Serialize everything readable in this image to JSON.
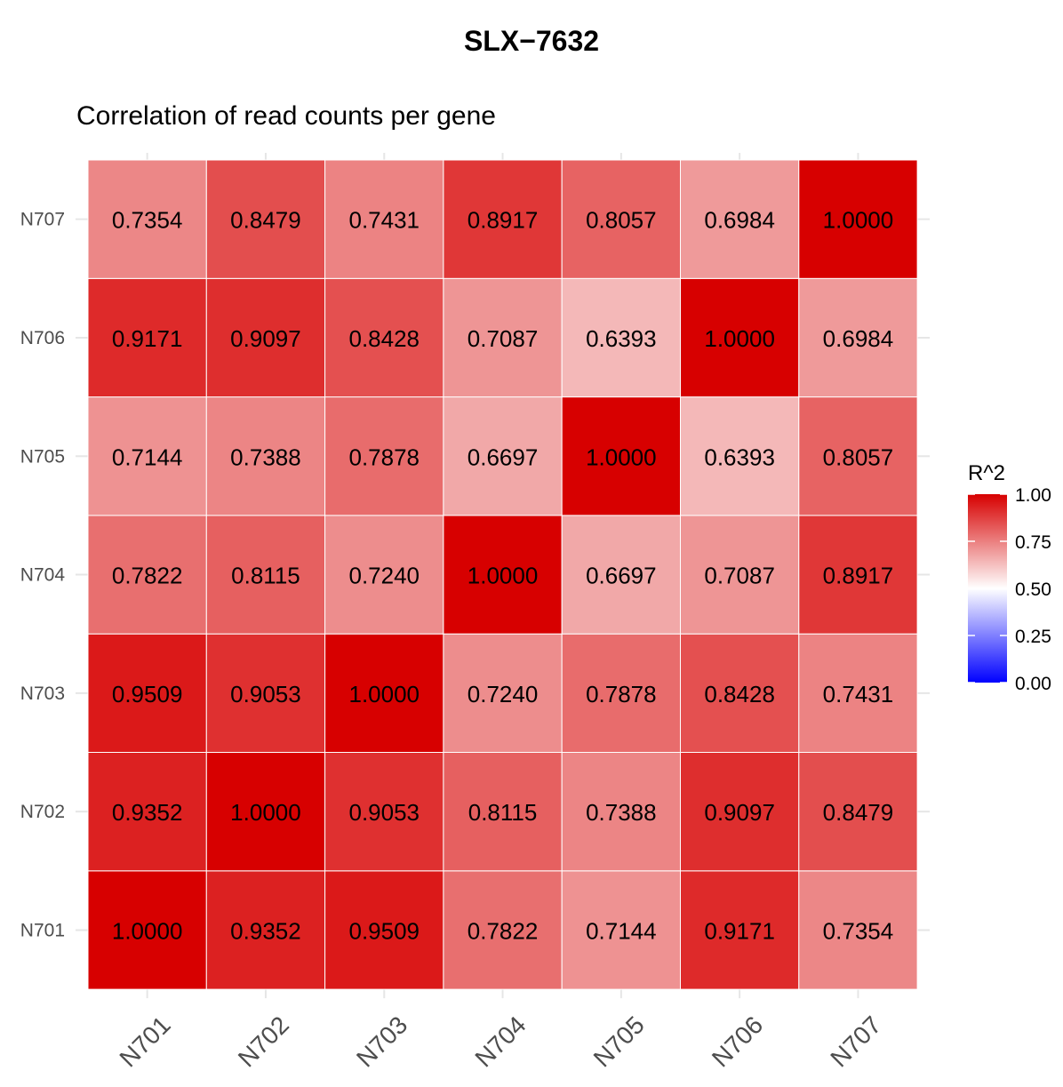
{
  "chart_data": {
    "type": "heatmap",
    "title": "SLX−7632",
    "subtitle": "Correlation of read counts per gene",
    "x_categories": [
      "N701",
      "N702",
      "N703",
      "N704",
      "N705",
      "N706",
      "N707"
    ],
    "y_categories": [
      "N701",
      "N702",
      "N703",
      "N704",
      "N705",
      "N706",
      "N707"
    ],
    "values": [
      [
        1.0,
        0.9352,
        0.9509,
        0.7822,
        0.7144,
        0.9171,
        0.7354
      ],
      [
        0.9352,
        1.0,
        0.9053,
        0.8115,
        0.7388,
        0.9097,
        0.8479
      ],
      [
        0.9509,
        0.9053,
        1.0,
        0.724,
        0.7878,
        0.8428,
        0.7431
      ],
      [
        0.7822,
        0.8115,
        0.724,
        1.0,
        0.6697,
        0.7087,
        0.8917
      ],
      [
        0.7144,
        0.7388,
        0.7878,
        0.6697,
        1.0,
        0.6393,
        0.8057
      ],
      [
        0.9171,
        0.9097,
        0.8428,
        0.7087,
        0.6393,
        1.0,
        0.6984
      ],
      [
        0.7354,
        0.8479,
        0.7431,
        0.8917,
        0.8057,
        0.6984,
        1.0
      ]
    ],
    "cell_labels": [
      [
        "1.0000",
        "0.9352",
        "0.9509",
        "0.7822",
        "0.7144",
        "0.9171",
        "0.7354"
      ],
      [
        "0.9352",
        "1.0000",
        "0.9053",
        "0.8115",
        "0.7388",
        "0.9097",
        "0.8479"
      ],
      [
        "0.9509",
        "0.9053",
        "1.0000",
        "0.7240",
        "0.7878",
        "0.8428",
        "0.7431"
      ],
      [
        "0.7822",
        "0.8115",
        "0.7240",
        "1.0000",
        "0.6697",
        "0.7087",
        "0.8917"
      ],
      [
        "0.7144",
        "0.7388",
        "0.7878",
        "0.6697",
        "1.0000",
        "0.6393",
        "0.8057"
      ],
      [
        "0.9171",
        "0.9097",
        "0.8428",
        "0.7087",
        "0.6393",
        "1.0000",
        "0.6984"
      ],
      [
        "0.7354",
        "0.8479",
        "0.7431",
        "0.8917",
        "0.8057",
        "0.6984",
        "1.0000"
      ]
    ],
    "color_scale": {
      "low": "#0000ff",
      "mid": "#ffffff",
      "high": "#d70000",
      "midpoint": 0.5,
      "limits": [
        0,
        1
      ]
    },
    "legend": {
      "title": "R^2",
      "tick_labels": [
        "1.00",
        "0.75",
        "0.50",
        "0.25",
        "0.00"
      ],
      "tick_values": [
        1.0,
        0.75,
        0.5,
        0.25,
        0.0
      ],
      "position": "right"
    }
  }
}
